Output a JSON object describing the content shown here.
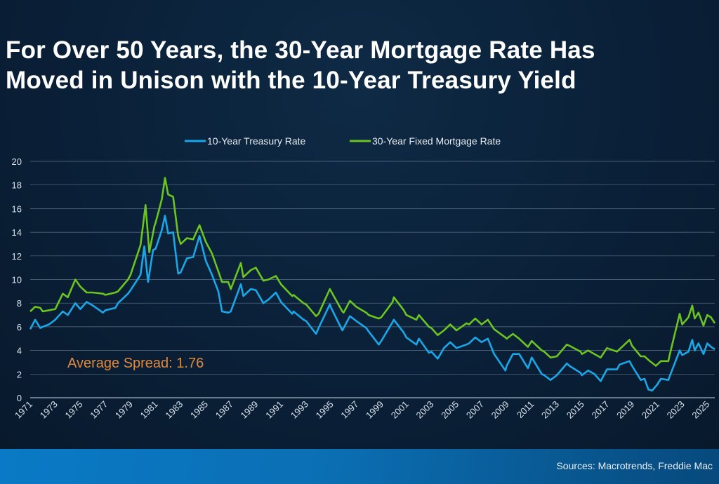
{
  "title_line1": "For Over 50 Years, the 30-Year Mortgage Rate Has",
  "title_line2": "Moved in Unison with the 10-Year Treasury Yield",
  "footer": {
    "sources": "Sources: Macrotrends, Freddie Mac"
  },
  "chart_data": {
    "type": "line",
    "title": "For Over 50 Years, the 30-Year Mortgage Rate Has Moved in Unison with the 10-Year Treasury Yield",
    "xlabel": "",
    "ylabel": "",
    "xlim": [
      1971,
      2025.6
    ],
    "ylim": [
      0,
      20
    ],
    "y_ticks": [
      0,
      2,
      4,
      6,
      8,
      10,
      12,
      14,
      16,
      18,
      20
    ],
    "x_ticks": [
      "1971",
      "1973",
      "1975",
      "1977",
      "1979",
      "1981",
      "1983",
      "1985",
      "1987",
      "1989",
      "1991",
      "1993",
      "1995",
      "1997",
      "1999",
      "2001",
      "2003",
      "2005",
      "2007",
      "2009",
      "2011",
      "2013",
      "2015",
      "2017",
      "2019",
      "2021",
      "2023",
      "2025"
    ],
    "grid": "horizontal",
    "legend_position": "top-center",
    "annotation": "Average Spread: 1.76",
    "colors": {
      "treasury": "#1aa7e8",
      "mortgage": "#6cc421",
      "annotation": "#e0893d"
    },
    "series": [
      {
        "name": "10-Year Treasury Rate",
        "points": [
          [
            1971,
            5.8
          ],
          [
            1971.4,
            6.6
          ],
          [
            1971.8,
            5.9
          ],
          [
            1972,
            6.0
          ],
          [
            1972.5,
            6.2
          ],
          [
            1973,
            6.6
          ],
          [
            1973.6,
            7.3
          ],
          [
            1974,
            7.0
          ],
          [
            1974.6,
            8.0
          ],
          [
            1975,
            7.5
          ],
          [
            1975.5,
            8.1
          ],
          [
            1976,
            7.8
          ],
          [
            1976.8,
            7.2
          ],
          [
            1977,
            7.4
          ],
          [
            1977.8,
            7.6
          ],
          [
            1978,
            8.0
          ],
          [
            1978.8,
            8.8
          ],
          [
            1979,
            9.1
          ],
          [
            1979.8,
            10.4
          ],
          [
            1980.1,
            12.8
          ],
          [
            1980.4,
            9.8
          ],
          [
            1980.8,
            12.5
          ],
          [
            1981,
            12.6
          ],
          [
            1981.5,
            14.2
          ],
          [
            1981.75,
            15.4
          ],
          [
            1982,
            13.9
          ],
          [
            1982.4,
            14.0
          ],
          [
            1982.8,
            10.5
          ],
          [
            1983,
            10.6
          ],
          [
            1983.5,
            11.8
          ],
          [
            1984,
            11.9
          ],
          [
            1984.5,
            13.7
          ],
          [
            1985,
            11.6
          ],
          [
            1985.5,
            10.4
          ],
          [
            1986,
            9.0
          ],
          [
            1986.3,
            7.3
          ],
          [
            1986.8,
            7.2
          ],
          [
            1987,
            7.3
          ],
          [
            1987.8,
            9.6
          ],
          [
            1988,
            8.6
          ],
          [
            1988.6,
            9.2
          ],
          [
            1989,
            9.1
          ],
          [
            1989.6,
            8.0
          ],
          [
            1990,
            8.3
          ],
          [
            1990.6,
            8.9
          ],
          [
            1991,
            8.1
          ],
          [
            1991.9,
            7.1
          ],
          [
            1992,
            7.3
          ],
          [
            1992.8,
            6.6
          ],
          [
            1993,
            6.5
          ],
          [
            1993.8,
            5.4
          ],
          [
            1994,
            5.9
          ],
          [
            1994.9,
            7.9
          ],
          [
            1995,
            7.6
          ],
          [
            1995.9,
            5.7
          ],
          [
            1996,
            5.9
          ],
          [
            1996.5,
            6.9
          ],
          [
            1997,
            6.5
          ],
          [
            1997.8,
            5.9
          ],
          [
            1998,
            5.6
          ],
          [
            1998.8,
            4.5
          ],
          [
            1999,
            4.8
          ],
          [
            1999.9,
            6.4
          ],
          [
            2000,
            6.6
          ],
          [
            2000.8,
            5.5
          ],
          [
            2001,
            5.1
          ],
          [
            2001.8,
            4.5
          ],
          [
            2002,
            5.0
          ],
          [
            2002.8,
            3.8
          ],
          [
            2003,
            3.9
          ],
          [
            2003.5,
            3.3
          ],
          [
            2004,
            4.2
          ],
          [
            2004.5,
            4.7
          ],
          [
            2005,
            4.2
          ],
          [
            2005.8,
            4.5
          ],
          [
            2006,
            4.6
          ],
          [
            2006.5,
            5.1
          ],
          [
            2007,
            4.7
          ],
          [
            2007.5,
            5.0
          ],
          [
            2008,
            3.7
          ],
          [
            2008.9,
            2.3
          ],
          [
            2009,
            2.7
          ],
          [
            2009.5,
            3.7
          ],
          [
            2010,
            3.7
          ],
          [
            2010.7,
            2.5
          ],
          [
            2011,
            3.4
          ],
          [
            2011.8,
            2.0
          ],
          [
            2012,
            1.9
          ],
          [
            2012.5,
            1.5
          ],
          [
            2013,
            1.9
          ],
          [
            2013.8,
            2.9
          ],
          [
            2014,
            2.7
          ],
          [
            2014.9,
            2.1
          ],
          [
            2015,
            1.9
          ],
          [
            2015.5,
            2.3
          ],
          [
            2016,
            2.0
          ],
          [
            2016.5,
            1.4
          ],
          [
            2017,
            2.4
          ],
          [
            2017.8,
            2.4
          ],
          [
            2018,
            2.8
          ],
          [
            2018.8,
            3.1
          ],
          [
            2019,
            2.7
          ],
          [
            2019.7,
            1.5
          ],
          [
            2020,
            1.6
          ],
          [
            2020.3,
            0.7
          ],
          [
            2020.6,
            0.6
          ],
          [
            2021,
            1.1
          ],
          [
            2021.3,
            1.6
          ],
          [
            2021.9,
            1.5
          ],
          [
            2022,
            1.8
          ],
          [
            2022.8,
            4.0
          ],
          [
            2023,
            3.6
          ],
          [
            2023.5,
            3.9
          ],
          [
            2023.8,
            4.9
          ],
          [
            2024,
            4.0
          ],
          [
            2024.3,
            4.6
          ],
          [
            2024.7,
            3.7
          ],
          [
            2025,
            4.6
          ],
          [
            2025.3,
            4.3
          ],
          [
            2025.6,
            4.1
          ]
        ]
      },
      {
        "name": "30-Year Fixed Mortgage Rate",
        "points": [
          [
            1971,
            7.3
          ],
          [
            1971.4,
            7.7
          ],
          [
            1971.8,
            7.6
          ],
          [
            1972,
            7.3
          ],
          [
            1972.5,
            7.4
          ],
          [
            1973,
            7.5
          ],
          [
            1973.6,
            8.8
          ],
          [
            1974,
            8.5
          ],
          [
            1974.6,
            10.0
          ],
          [
            1975,
            9.4
          ],
          [
            1975.5,
            8.9
          ],
          [
            1976,
            8.9
          ],
          [
            1976.8,
            8.8
          ],
          [
            1977,
            8.7
          ],
          [
            1977.8,
            8.9
          ],
          [
            1978,
            9.0
          ],
          [
            1978.8,
            10.0
          ],
          [
            1979,
            10.4
          ],
          [
            1979.8,
            12.9
          ],
          [
            1980.2,
            16.3
          ],
          [
            1980.5,
            12.3
          ],
          [
            1980.9,
            14.5
          ],
          [
            1981,
            14.8
          ],
          [
            1981.5,
            16.8
          ],
          [
            1981.75,
            18.6
          ],
          [
            1982,
            17.2
          ],
          [
            1982.4,
            17.0
          ],
          [
            1982.8,
            13.7
          ],
          [
            1983,
            13.0
          ],
          [
            1983.5,
            13.5
          ],
          [
            1984,
            13.4
          ],
          [
            1984.5,
            14.6
          ],
          [
            1985,
            13.2
          ],
          [
            1985.5,
            12.2
          ],
          [
            1986,
            10.7
          ],
          [
            1986.3,
            9.8
          ],
          [
            1986.8,
            9.8
          ],
          [
            1987,
            9.2
          ],
          [
            1987.8,
            11.4
          ],
          [
            1988,
            10.2
          ],
          [
            1988.6,
            10.8
          ],
          [
            1989,
            11.0
          ],
          [
            1989.6,
            9.9
          ],
          [
            1990,
            10.0
          ],
          [
            1990.6,
            10.3
          ],
          [
            1991,
            9.6
          ],
          [
            1991.9,
            8.6
          ],
          [
            1992,
            8.7
          ],
          [
            1992.8,
            8.0
          ],
          [
            1993,
            7.9
          ],
          [
            1993.8,
            6.9
          ],
          [
            1994,
            7.1
          ],
          [
            1994.9,
            9.2
          ],
          [
            1995,
            9.0
          ],
          [
            1995.9,
            7.3
          ],
          [
            1996,
            7.2
          ],
          [
            1996.5,
            8.2
          ],
          [
            1997,
            7.7
          ],
          [
            1997.8,
            7.2
          ],
          [
            1998,
            7.0
          ],
          [
            1998.8,
            6.7
          ],
          [
            1999,
            6.8
          ],
          [
            1999.9,
            8.1
          ],
          [
            2000,
            8.5
          ],
          [
            2000.8,
            7.4
          ],
          [
            2001,
            7.0
          ],
          [
            2001.8,
            6.6
          ],
          [
            2002,
            7.0
          ],
          [
            2002.8,
            6.0
          ],
          [
            2003,
            5.9
          ],
          [
            2003.5,
            5.3
          ],
          [
            2004,
            5.7
          ],
          [
            2004.5,
            6.2
          ],
          [
            2005,
            5.7
          ],
          [
            2005.8,
            6.3
          ],
          [
            2006,
            6.2
          ],
          [
            2006.5,
            6.7
          ],
          [
            2007,
            6.2
          ],
          [
            2007.5,
            6.6
          ],
          [
            2008,
            5.8
          ],
          [
            2008.9,
            5.1
          ],
          [
            2009,
            5.0
          ],
          [
            2009.5,
            5.4
          ],
          [
            2010,
            5.0
          ],
          [
            2010.7,
            4.3
          ],
          [
            2011,
            4.8
          ],
          [
            2011.8,
            4.0
          ],
          [
            2012,
            3.9
          ],
          [
            2012.5,
            3.4
          ],
          [
            2013,
            3.5
          ],
          [
            2013.8,
            4.5
          ],
          [
            2014,
            4.4
          ],
          [
            2014.9,
            3.9
          ],
          [
            2015,
            3.7
          ],
          [
            2015.5,
            4.0
          ],
          [
            2016,
            3.7
          ],
          [
            2016.5,
            3.4
          ],
          [
            2017,
            4.2
          ],
          [
            2017.8,
            3.9
          ],
          [
            2018,
            4.1
          ],
          [
            2018.8,
            4.9
          ],
          [
            2019,
            4.4
          ],
          [
            2019.7,
            3.5
          ],
          [
            2020,
            3.5
          ],
          [
            2020.3,
            3.2
          ],
          [
            2020.9,
            2.7
          ],
          [
            2021,
            2.8
          ],
          [
            2021.3,
            3.1
          ],
          [
            2021.9,
            3.1
          ],
          [
            2022,
            3.6
          ],
          [
            2022.8,
            7.1
          ],
          [
            2023,
            6.2
          ],
          [
            2023.5,
            6.8
          ],
          [
            2023.8,
            7.8
          ],
          [
            2024,
            6.7
          ],
          [
            2024.3,
            7.2
          ],
          [
            2024.7,
            6.1
          ],
          [
            2025,
            7.0
          ],
          [
            2025.3,
            6.8
          ],
          [
            2025.6,
            6.3
          ]
        ]
      }
    ]
  }
}
